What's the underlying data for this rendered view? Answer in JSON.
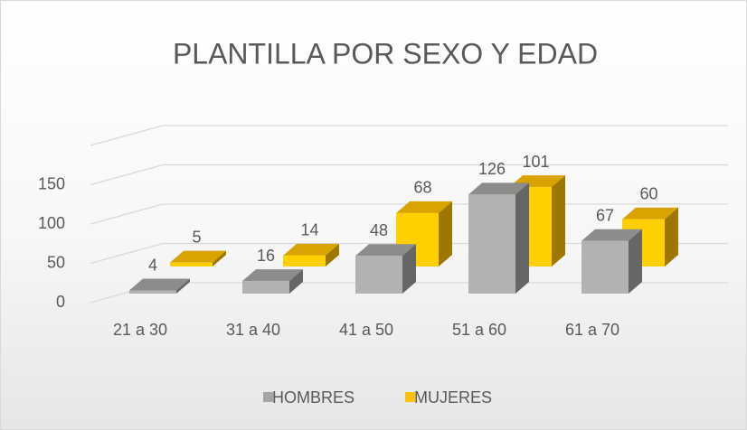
{
  "chart_data": {
    "type": "bar3d",
    "title": "PLANTILLA POR SEXO Y EDAD",
    "categories": [
      "21 a 30",
      "31 a 40",
      "41 a 50",
      "51 a 60",
      "61 a 70"
    ],
    "series": [
      {
        "name": "HOMBRES",
        "color": "#a5a5a5",
        "values": [
          4,
          16,
          48,
          126,
          67
        ]
      },
      {
        "name": "MUJERES",
        "color": "#ffc000",
        "values": [
          5,
          14,
          68,
          101,
          60
        ]
      }
    ],
    "ylim": [
      0,
      200
    ],
    "yticks": [
      0,
      50,
      100,
      150
    ],
    "grid": true,
    "legend": "bottom"
  }
}
